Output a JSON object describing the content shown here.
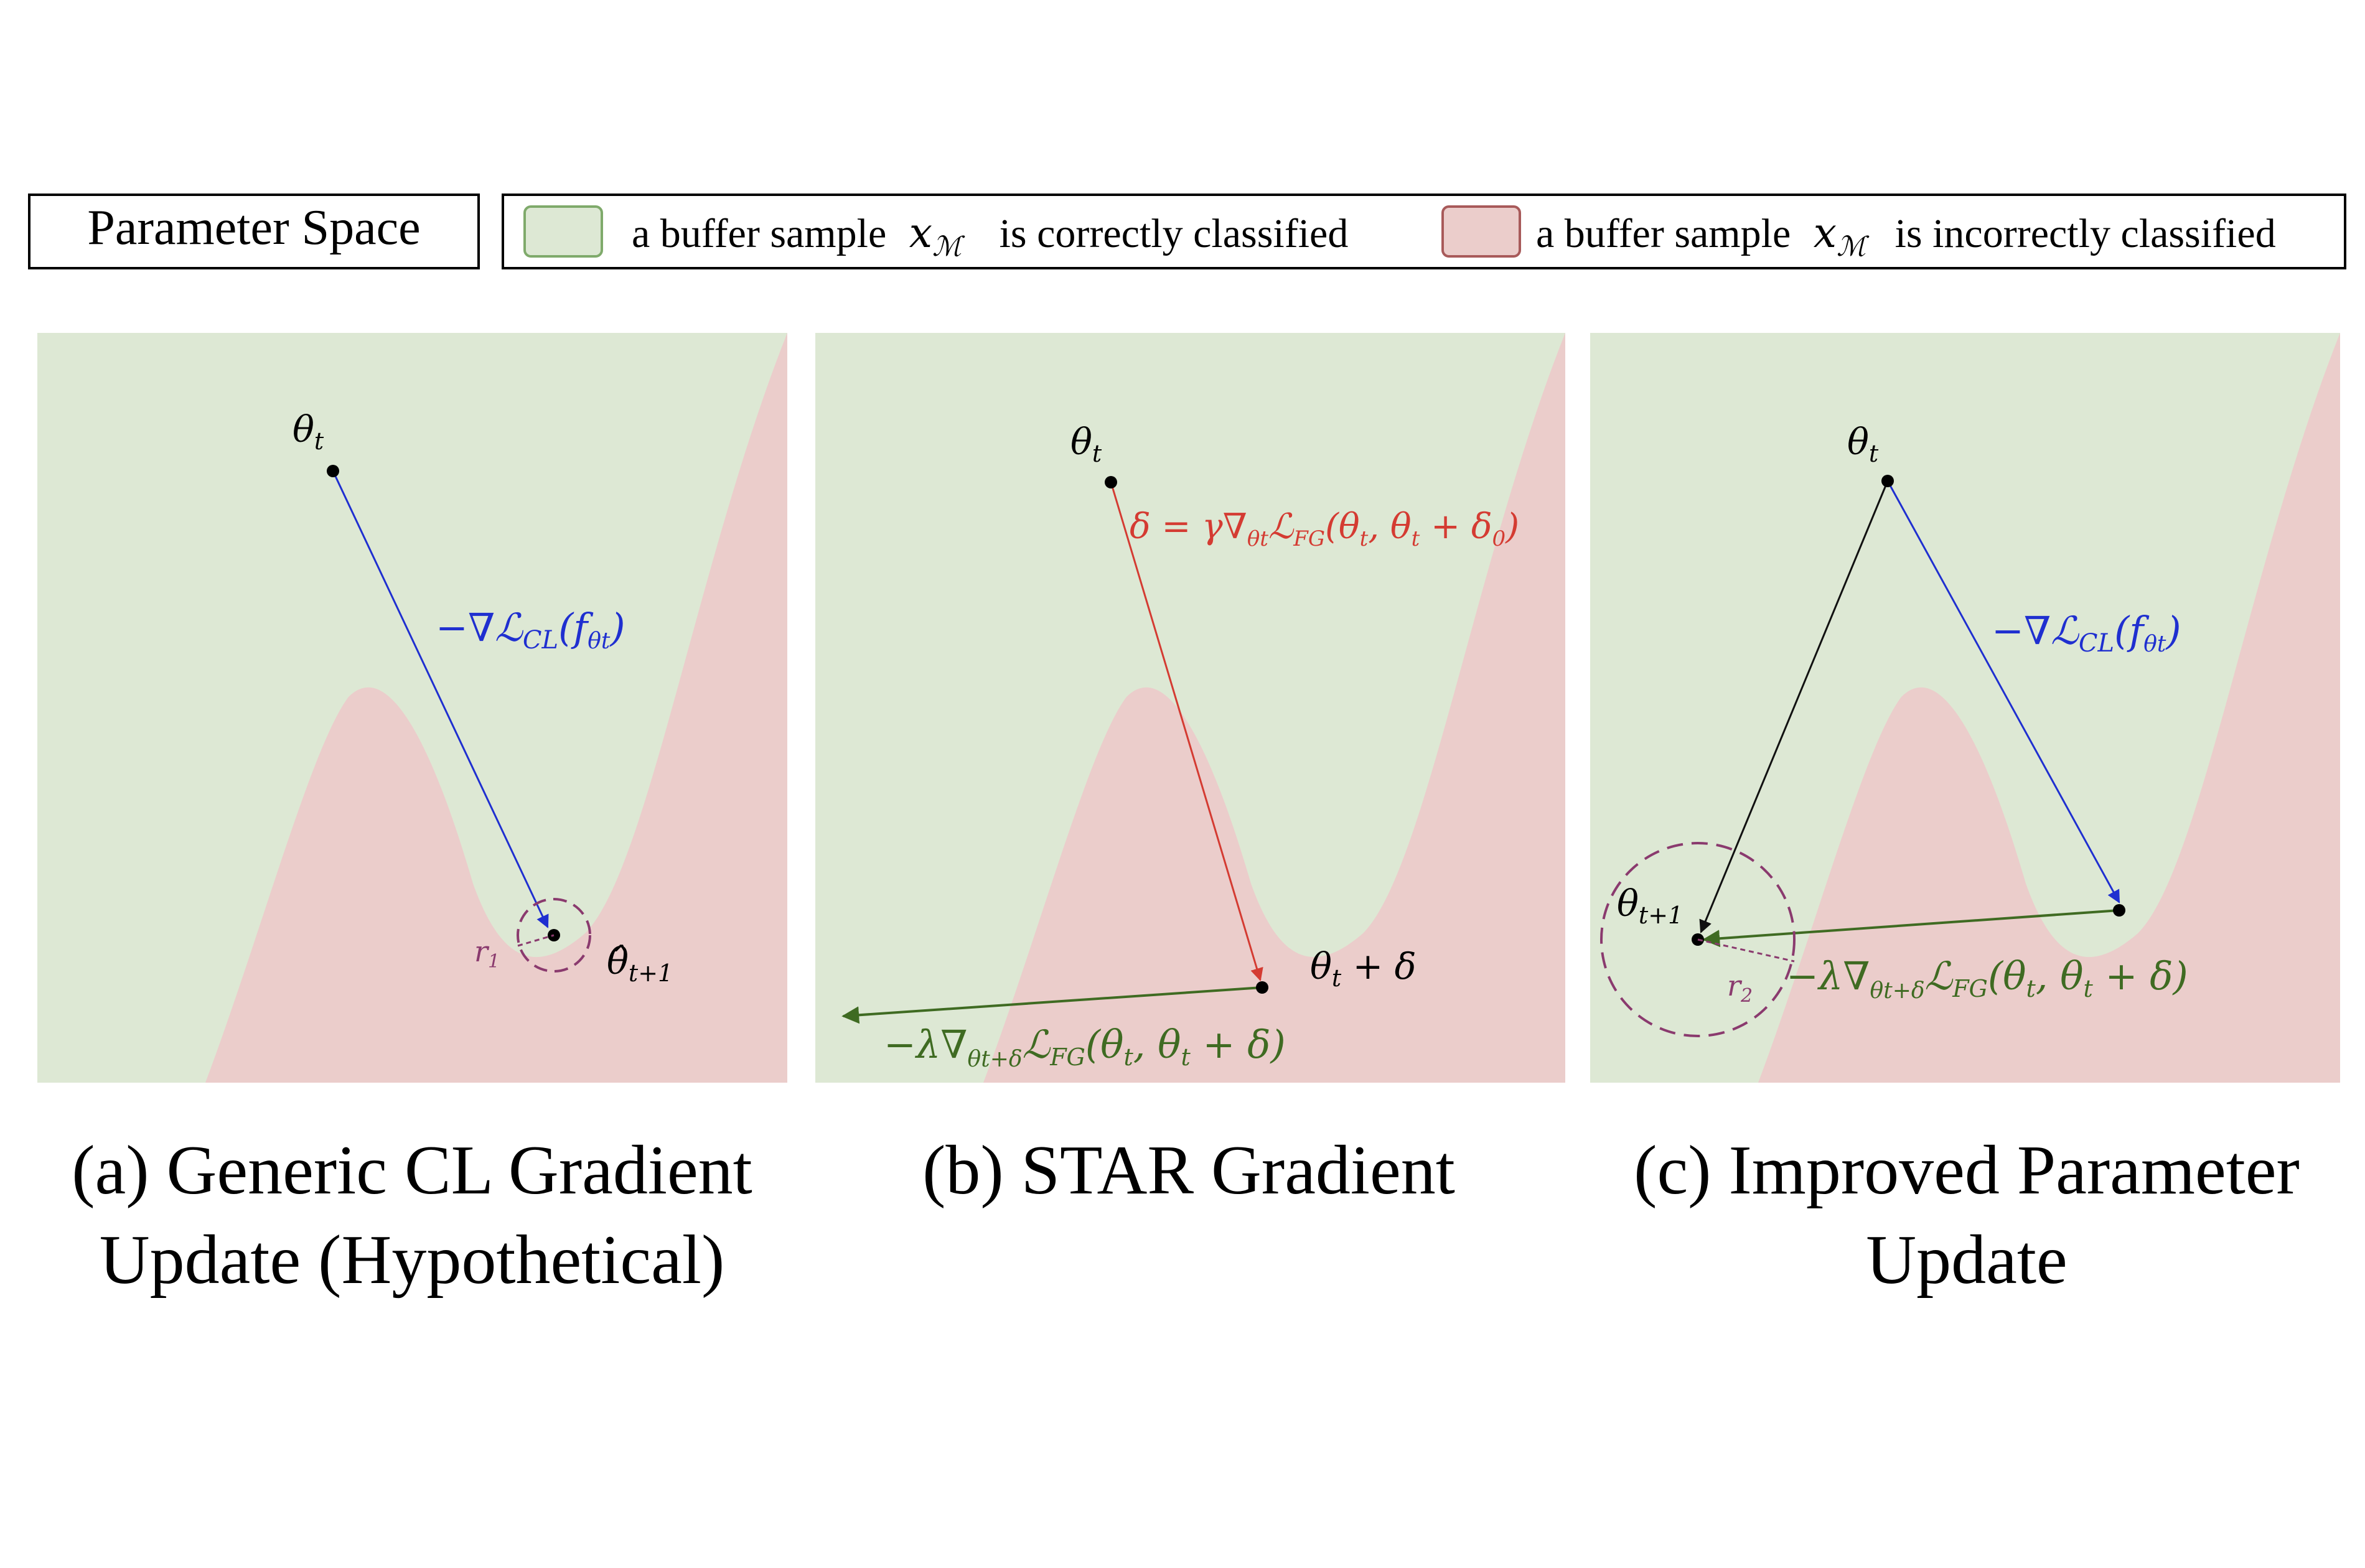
{
  "legend": {
    "box_label": "Parameter Space",
    "correct_prefix": "a buffer sample",
    "correct_symbol": "x",
    "correct_symbol_sub": "ℳ",
    "correct_suffix": "is correctly classified",
    "incorrect_prefix": "a buffer sample",
    "incorrect_symbol": "x",
    "incorrect_symbol_sub": "ℳ",
    "incorrect_suffix": "is incorrectly classified",
    "colors": {
      "correct_fill": "#dde8d4",
      "correct_border": "#7faa6b",
      "incorrect_fill": "#ebcdcb",
      "incorrect_border": "#a85a5a"
    }
  },
  "colors": {
    "green_region": "#dde8d4",
    "red_region": "#ebcdcb",
    "blue_arrow": "#1f2fd0",
    "red_arrow": "#d43b32",
    "green_arrow": "#3f6b22",
    "black_arrow": "#111111",
    "circle": "#8a3a6e"
  },
  "panels": {
    "a": {
      "theta_t": "θ",
      "theta_t_sub": "t",
      "grad_label_main": "−∇ℒ",
      "grad_label_sub": "CL",
      "grad_label_arg": "(f",
      "grad_label_arg_sub": "θt",
      "grad_label_close": ")",
      "radius_label": "r",
      "radius_label_sub": "1",
      "theta_hat": "θ̂",
      "theta_hat_sub": "t+1",
      "caption_line1": "(a) Generic CL Gradient",
      "caption_line2": "Update (Hypothetical)"
    },
    "b": {
      "theta_t": "θ",
      "theta_t_sub": "t",
      "delta_label": "δ = γ∇",
      "delta_label_sub": "θt",
      "delta_label_rest": "ℒ",
      "delta_label_rest_sub": "FG",
      "delta_label_args": "(θ",
      "delta_label_args_sub1": "t",
      "delta_label_args_mid": ", θ",
      "delta_label_args_sub2": "t",
      "delta_label_args_end": " + δ",
      "delta_label_args_sub3": "0",
      "delta_label_close": ")",
      "theta_delta": "θ",
      "theta_delta_sub": "t",
      "theta_delta_rest": " + δ",
      "fg_label_main": "−λ∇",
      "fg_label_sub": "θt+δ",
      "fg_label_L": "ℒ",
      "fg_label_L_sub": "FG",
      "fg_label_args": "(θ",
      "fg_label_args_sub1": "t",
      "fg_label_args_mid": ", θ",
      "fg_label_args_sub2": "t",
      "fg_label_args_end": " + δ)",
      "caption_line1": "(b) STAR Gradient"
    },
    "c": {
      "theta_t": "θ",
      "theta_t_sub": "t",
      "grad_label_main": "−∇ℒ",
      "grad_label_sub": "CL",
      "grad_label_arg": "(f",
      "grad_label_arg_sub": "θt",
      "grad_label_close": ")",
      "theta_next": "θ",
      "theta_next_sub": "t+1",
      "radius_label": "r",
      "radius_label_sub": "2",
      "fg_label_main": "−λ∇",
      "fg_label_sub": "θt+δ",
      "fg_label_L": "ℒ",
      "fg_label_L_sub": "FG",
      "fg_label_args": "(θ",
      "fg_label_args_sub1": "t",
      "fg_label_args_mid": ", θ",
      "fg_label_args_sub2": "t",
      "fg_label_args_end": " + δ)",
      "caption_line1": "(c) Improved Parameter",
      "caption_line2": "Update"
    }
  }
}
